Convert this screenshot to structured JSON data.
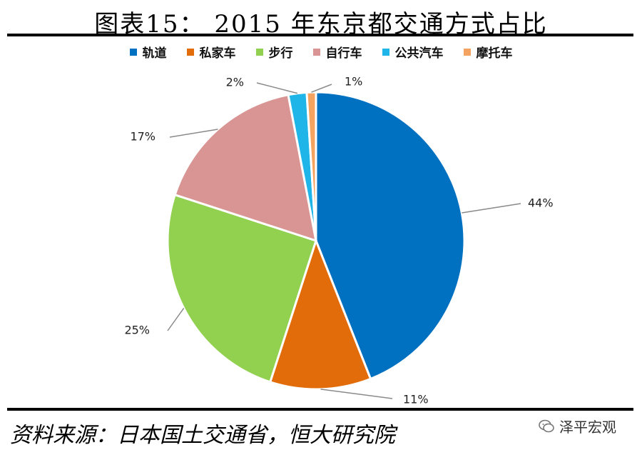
{
  "header": {
    "title": "图表15：   2015 年东京都交通方式占比"
  },
  "footer": {
    "source": "资料来源：日本国土交通省，恒大研究院",
    "watermark": "泽平宏观"
  },
  "chart_data": {
    "type": "pie",
    "start_angle_deg": 0,
    "direction": "clockwise",
    "categories": [
      "轨道",
      "私家车",
      "步行",
      "自行车",
      "公共汽车",
      "摩托车"
    ],
    "values": [
      44,
      11,
      25,
      17,
      2,
      1
    ],
    "labels": [
      "44%",
      "11%",
      "25%",
      "17%",
      "2%",
      "1%"
    ],
    "colors": [
      "#0070C0",
      "#E36C0A",
      "#92D050",
      "#D99594",
      "#1FB5E8",
      "#F4A460"
    ],
    "legend_position": "top"
  }
}
